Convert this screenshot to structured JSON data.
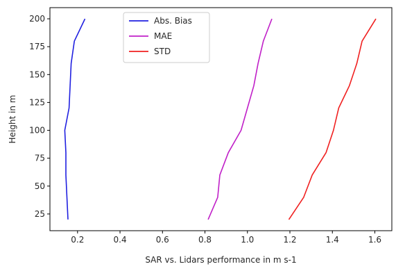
{
  "chart_data": {
    "type": "line",
    "title": "",
    "xlabel": "SAR vs. Lidars performance in m s-1",
    "ylabel": "Height in m",
    "xlim": [
      0.07,
      1.68
    ],
    "ylim": [
      10,
      210
    ],
    "xticks": [
      0.2,
      0.4,
      0.6,
      0.8,
      1.0,
      1.2,
      1.4,
      1.6
    ],
    "xtick_labels": [
      "0.2",
      "0.4",
      "0.6",
      "0.8",
      "1.0",
      "1.2",
      "1.4",
      "1.6"
    ],
    "yticks": [
      25,
      50,
      75,
      100,
      125,
      150,
      175,
      200
    ],
    "ytick_labels": [
      "25",
      "50",
      "75",
      "100",
      "125",
      "150",
      "175",
      "200"
    ],
    "grid": false,
    "legend_position": "top-center",
    "series": [
      {
        "name": "Abs. Bias",
        "color": "#2020e0",
        "points": [
          [
            0.155,
            20
          ],
          [
            0.15,
            40
          ],
          [
            0.145,
            60
          ],
          [
            0.145,
            80
          ],
          [
            0.14,
            100
          ],
          [
            0.16,
            120
          ],
          [
            0.165,
            140
          ],
          [
            0.17,
            160
          ],
          [
            0.185,
            180
          ],
          [
            0.235,
            200
          ]
        ]
      },
      {
        "name": "MAE",
        "color": "#c020c8",
        "points": [
          [
            0.815,
            20
          ],
          [
            0.86,
            40
          ],
          [
            0.87,
            60
          ],
          [
            0.91,
            80
          ],
          [
            0.97,
            100
          ],
          [
            1.0,
            120
          ],
          [
            1.03,
            140
          ],
          [
            1.05,
            160
          ],
          [
            1.075,
            180
          ],
          [
            1.115,
            200
          ]
        ]
      },
      {
        "name": "STD",
        "color": "#f02020",
        "points": [
          [
            1.195,
            20
          ],
          [
            1.265,
            40
          ],
          [
            1.305,
            60
          ],
          [
            1.37,
            80
          ],
          [
            1.405,
            100
          ],
          [
            1.43,
            120
          ],
          [
            1.48,
            140
          ],
          [
            1.515,
            160
          ],
          [
            1.54,
            180
          ],
          [
            1.605,
            200
          ]
        ]
      }
    ]
  }
}
